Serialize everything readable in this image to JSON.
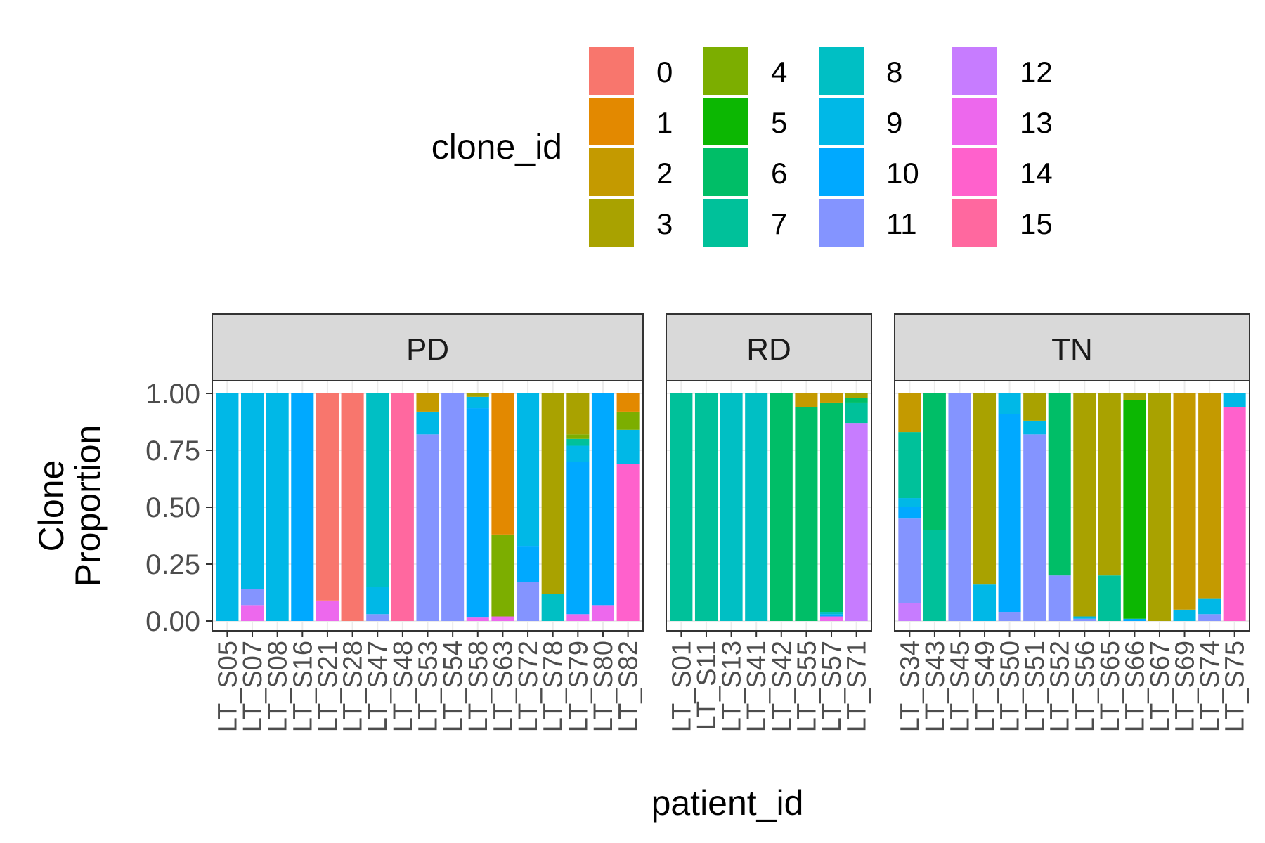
{
  "chart_data": {
    "type": "bar",
    "stacked": true,
    "xlabel": "patient_id",
    "ylabel_lines": [
      "Clone",
      "Proportion"
    ],
    "ylim": [
      0,
      1
    ],
    "yticks": [
      "0.00",
      "0.25",
      "0.50",
      "0.75",
      "1.00"
    ],
    "ytick_values": [
      0,
      0.25,
      0.5,
      0.75,
      1.0
    ],
    "legend": {
      "title": "clone_id",
      "position": "top",
      "columns": [
        [
          "0",
          "1",
          "2",
          "3"
        ],
        [
          "4",
          "5",
          "6",
          "7"
        ],
        [
          "8",
          "9",
          "10",
          "11"
        ],
        [
          "12",
          "13",
          "14",
          "15"
        ]
      ]
    },
    "clone_colors": {
      "0": "#F8766D",
      "1": "#E38900",
      "2": "#C49A00",
      "3": "#A9A200",
      "4": "#7CAE00",
      "5": "#0CB702",
      "6": "#00BE67",
      "7": "#00C19A",
      "8": "#00BFC4",
      "9": "#00B8E7",
      "10": "#00A9FF",
      "11": "#8494FF",
      "12": "#C77CFF",
      "13": "#ED68ED",
      "14": "#FF61CC",
      "15": "#FF689F"
    },
    "panels": [
      {
        "label": "PD",
        "bars": [
          {
            "patient": "LT_S05",
            "segments": [
              [
                "9",
                1.0
              ]
            ]
          },
          {
            "patient": "LT_S07",
            "segments": [
              [
                "13",
                0.07
              ],
              [
                "11",
                0.07
              ],
              [
                "9",
                0.86
              ]
            ]
          },
          {
            "patient": "LT_S08",
            "segments": [
              [
                "9",
                1.0
              ]
            ]
          },
          {
            "patient": "LT_S16",
            "segments": [
              [
                "10",
                1.0
              ]
            ]
          },
          {
            "patient": "LT_S21",
            "segments": [
              [
                "13",
                0.09
              ],
              [
                "0",
                0.91
              ]
            ]
          },
          {
            "patient": "LT_S28",
            "segments": [
              [
                "0",
                1.0
              ]
            ]
          },
          {
            "patient": "LT_S47",
            "segments": [
              [
                "11",
                0.03
              ],
              [
                "9",
                0.12
              ],
              [
                "8",
                0.85
              ]
            ]
          },
          {
            "patient": "LT_S48",
            "segments": [
              [
                "15",
                1.0
              ]
            ]
          },
          {
            "patient": "LT_S53",
            "segments": [
              [
                "11",
                0.82
              ],
              [
                "9",
                0.1
              ],
              [
                "2",
                0.08
              ]
            ]
          },
          {
            "patient": "LT_S54",
            "segments": [
              [
                "11",
                1.0
              ]
            ]
          },
          {
            "patient": "LT_S58",
            "segments": [
              [
                "13",
                0.015
              ],
              [
                "10",
                0.92
              ],
              [
                "9",
                0.05
              ],
              [
                "3",
                0.015
              ]
            ]
          },
          {
            "patient": "LT_S63",
            "segments": [
              [
                "13",
                0.02
              ],
              [
                "4",
                0.36
              ],
              [
                "1",
                0.62
              ]
            ]
          },
          {
            "patient": "LT_S72",
            "segments": [
              [
                "11",
                0.17
              ],
              [
                "10",
                0.16
              ],
              [
                "9",
                0.67
              ]
            ]
          },
          {
            "patient": "LT_S78",
            "segments": [
              [
                "8",
                0.12
              ],
              [
                "3",
                0.88
              ]
            ]
          },
          {
            "patient": "LT_S79",
            "segments": [
              [
                "13",
                0.03
              ],
              [
                "10",
                0.67
              ],
              [
                "9",
                0.07
              ],
              [
                "7",
                0.03
              ],
              [
                "4",
                0.02
              ],
              [
                "3",
                0.18
              ]
            ]
          },
          {
            "patient": "LT_S80",
            "segments": [
              [
                "13",
                0.07
              ],
              [
                "10",
                0.93
              ]
            ]
          },
          {
            "patient": "LT_S82",
            "segments": [
              [
                "14",
                0.69
              ],
              [
                "9",
                0.15
              ],
              [
                "4",
                0.08
              ],
              [
                "1",
                0.08
              ]
            ]
          }
        ]
      },
      {
        "label": "RD",
        "bars": [
          {
            "patient": "LT_S01",
            "segments": [
              [
                "7",
                1.0
              ]
            ]
          },
          {
            "patient": "LT_S11",
            "segments": [
              [
                "7",
                1.0
              ]
            ]
          },
          {
            "patient": "LT_S13",
            "segments": [
              [
                "8",
                1.0
              ]
            ]
          },
          {
            "patient": "LT_S41",
            "segments": [
              [
                "8",
                1.0
              ]
            ]
          },
          {
            "patient": "LT_S42",
            "segments": [
              [
                "6",
                1.0
              ]
            ]
          },
          {
            "patient": "LT_S55",
            "segments": [
              [
                "6",
                0.94
              ],
              [
                "2",
                0.06
              ]
            ]
          },
          {
            "patient": "LT_S57",
            "segments": [
              [
                "13",
                0.02
              ],
              [
                "10",
                0.01
              ],
              [
                "8",
                0.01
              ],
              [
                "6",
                0.92
              ],
              [
                "2",
                0.04
              ]
            ]
          },
          {
            "patient": "LT_S71",
            "segments": [
              [
                "12",
                0.87
              ],
              [
                "7",
                0.09
              ],
              [
                "6",
                0.02
              ],
              [
                "3",
                0.02
              ]
            ]
          }
        ]
      },
      {
        "label": "TN",
        "bars": [
          {
            "patient": "LT_S34",
            "segments": [
              [
                "12",
                0.08
              ],
              [
                "11",
                0.37
              ],
              [
                "10",
                0.05
              ],
              [
                "9",
                0.04
              ],
              [
                "7",
                0.29
              ],
              [
                "2",
                0.17
              ]
            ]
          },
          {
            "patient": "LT_S43",
            "segments": [
              [
                "7",
                0.4
              ],
              [
                "6",
                0.6
              ]
            ]
          },
          {
            "patient": "LT_S45",
            "segments": [
              [
                "11",
                1.0
              ]
            ]
          },
          {
            "patient": "LT_S49",
            "segments": [
              [
                "9",
                0.16
              ],
              [
                "3",
                0.84
              ]
            ]
          },
          {
            "patient": "LT_S50",
            "segments": [
              [
                "11",
                0.04
              ],
              [
                "10",
                0.87
              ],
              [
                "9",
                0.09
              ]
            ]
          },
          {
            "patient": "LT_S51",
            "segments": [
              [
                "11",
                0.82
              ],
              [
                "9",
                0.06
              ],
              [
                "3",
                0.12
              ]
            ]
          },
          {
            "patient": "LT_S52",
            "segments": [
              [
                "11",
                0.2
              ],
              [
                "6",
                0.8
              ]
            ]
          },
          {
            "patient": "LT_S56",
            "segments": [
              [
                "11",
                0.01
              ],
              [
                "9",
                0.01
              ],
              [
                "3",
                0.98
              ]
            ]
          },
          {
            "patient": "LT_S65",
            "segments": [
              [
                "7",
                0.2
              ],
              [
                "3",
                0.8
              ]
            ]
          },
          {
            "patient": "LT_S66",
            "segments": [
              [
                "10",
                0.01
              ],
              [
                "5",
                0.96
              ],
              [
                "3",
                0.03
              ]
            ]
          },
          {
            "patient": "LT_S67",
            "segments": [
              [
                "3",
                1.0
              ]
            ]
          },
          {
            "patient": "LT_S69",
            "segments": [
              [
                "9",
                0.05
              ],
              [
                "2",
                0.95
              ]
            ]
          },
          {
            "patient": "LT_S74",
            "segments": [
              [
                "11",
                0.03
              ],
              [
                "9",
                0.07
              ],
              [
                "2",
                0.9
              ]
            ]
          },
          {
            "patient": "LT_S75",
            "segments": [
              [
                "14",
                0.94
              ],
              [
                "9",
                0.06
              ]
            ]
          }
        ]
      }
    ]
  }
}
